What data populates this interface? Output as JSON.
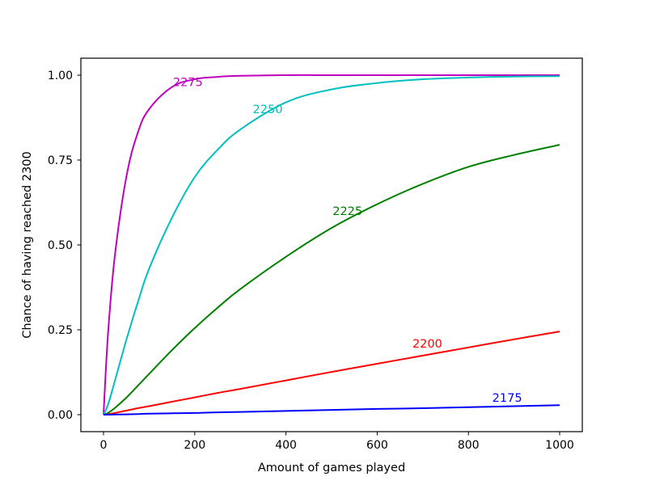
{
  "chart_data": {
    "type": "line",
    "title": "",
    "xlabel": "Amount of games played",
    "ylabel": "Chance of having reached 2300",
    "xlim": [
      -50,
      1050
    ],
    "ylim": [
      -0.05,
      1.05
    ],
    "xticks": [
      0,
      200,
      400,
      600,
      800,
      1000
    ],
    "xtick_labels": [
      "0",
      "200",
      "400",
      "600",
      "800",
      "1000"
    ],
    "yticks": [
      0.0,
      0.25,
      0.5,
      0.75,
      1.0
    ],
    "ytick_labels": [
      "0.00",
      "0.25",
      "0.50",
      "0.75",
      "1.00"
    ],
    "grid": false,
    "legend": "inline labels",
    "x": [
      0,
      10,
      25,
      50,
      75,
      100,
      150,
      200,
      250,
      300,
      400,
      500,
      600,
      700,
      800,
      900,
      1000
    ],
    "series": [
      {
        "name": "2275",
        "color": "#bf00bf",
        "label_pos": {
          "x": 185,
          "y": 0.98
        },
        "values": [
          0.0,
          0.24,
          0.47,
          0.7,
          0.83,
          0.9,
          0.965,
          0.988,
          0.995,
          0.998,
          1.0,
          1.0,
          1.0,
          1.0,
          1.0,
          1.0,
          1.0
        ]
      },
      {
        "name": "2250",
        "color": "#00bfbf",
        "label_pos": {
          "x": 360,
          "y": 0.9
        },
        "values": [
          0.0,
          0.03,
          0.1,
          0.22,
          0.33,
          0.43,
          0.58,
          0.7,
          0.78,
          0.84,
          0.92,
          0.958,
          0.977,
          0.988,
          0.993,
          0.996,
          0.997
        ]
      },
      {
        "name": "2225",
        "color": "#008000",
        "label_pos": {
          "x": 535,
          "y": 0.6
        },
        "values": [
          0.0,
          0.005,
          0.02,
          0.05,
          0.085,
          0.12,
          0.19,
          0.255,
          0.315,
          0.37,
          0.465,
          0.55,
          0.62,
          0.68,
          0.73,
          0.765,
          0.795
        ]
      },
      {
        "name": "2200",
        "color": "#ff0000",
        "label_pos": {
          "x": 710,
          "y": 0.21
        },
        "values": [
          0.0,
          0.001,
          0.005,
          0.012,
          0.019,
          0.025,
          0.038,
          0.051,
          0.064,
          0.076,
          0.101,
          0.126,
          0.15,
          0.174,
          0.198,
          0.222,
          0.245
        ]
      },
      {
        "name": "2175",
        "color": "#0000ff",
        "label_pos": {
          "x": 885,
          "y": 0.05
        },
        "values": [
          0.0,
          0.0,
          0.0005,
          0.001,
          0.002,
          0.003,
          0.004,
          0.005,
          0.007,
          0.008,
          0.011,
          0.014,
          0.017,
          0.019,
          0.022,
          0.025,
          0.028
        ]
      }
    ]
  }
}
